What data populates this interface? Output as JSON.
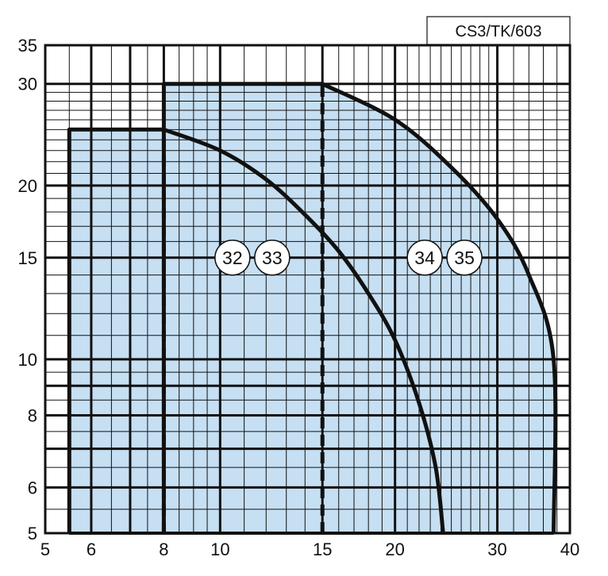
{
  "figure_code": "CS3/TK/603",
  "chart_data": {
    "type": "area",
    "xscale": "log",
    "yscale": "log",
    "xlim": [
      5,
      40
    ],
    "ylim": [
      5,
      35
    ],
    "xticks": [
      5,
      6,
      8,
      10,
      15,
      20,
      30,
      40
    ],
    "yticks": [
      5,
      6,
      8,
      10,
      15,
      20,
      30,
      35
    ],
    "x_minor_grid": [
      5.5,
      6.5,
      7,
      7.5,
      8.5,
      9,
      9.5,
      11,
      12,
      13,
      14,
      16,
      17,
      18,
      19,
      21,
      22,
      23,
      24,
      25,
      26,
      27,
      28,
      29,
      32,
      34,
      36,
      38
    ],
    "y_minor_grid": [
      5.5,
      6.5,
      7,
      7.5,
      8.5,
      9,
      9.5,
      11,
      12,
      13,
      14,
      16,
      17,
      18,
      19,
      21,
      22,
      23,
      24,
      25,
      26,
      27,
      28,
      29
    ],
    "x_major_grid": [
      6,
      7,
      8,
      10,
      15,
      20,
      30
    ],
    "y_major_grid": [
      6,
      7,
      8,
      9,
      10,
      15,
      20,
      30
    ],
    "grid": true,
    "fill_color": "#c6dff2",
    "line_color": "#111111",
    "series": [
      {
        "labels": [
          "32",
          "33"
        ],
        "label_pos": [
          10.5,
          15
        ],
        "boundary": [
          [
            5.5,
            5
          ],
          [
            5.5,
            25
          ],
          [
            8,
            25
          ],
          [
            10,
            23
          ],
          [
            12,
            20.5
          ],
          [
            14,
            17.8
          ],
          [
            16,
            15.4
          ],
          [
            18,
            13
          ],
          [
            20,
            10.8
          ],
          [
            22,
            8.4
          ],
          [
            23.5,
            6.5
          ],
          [
            24.2,
            5
          ]
        ]
      },
      {
        "labels": [
          "34",
          "35"
        ],
        "label_pos": [
          22.5,
          15
        ],
        "boundary": [
          [
            8,
            5
          ],
          [
            8,
            30
          ],
          [
            15,
            30
          ],
          [
            20,
            26
          ],
          [
            25,
            21.5
          ],
          [
            30,
            17.5
          ],
          [
            34,
            14
          ],
          [
            37.5,
            10
          ],
          [
            37.5,
            5
          ]
        ]
      }
    ],
    "dashed_dividers": [
      {
        "x": 8,
        "y_range": [
          5,
          25
        ]
      },
      {
        "x": 15,
        "y_range": [
          5,
          30
        ]
      }
    ]
  }
}
